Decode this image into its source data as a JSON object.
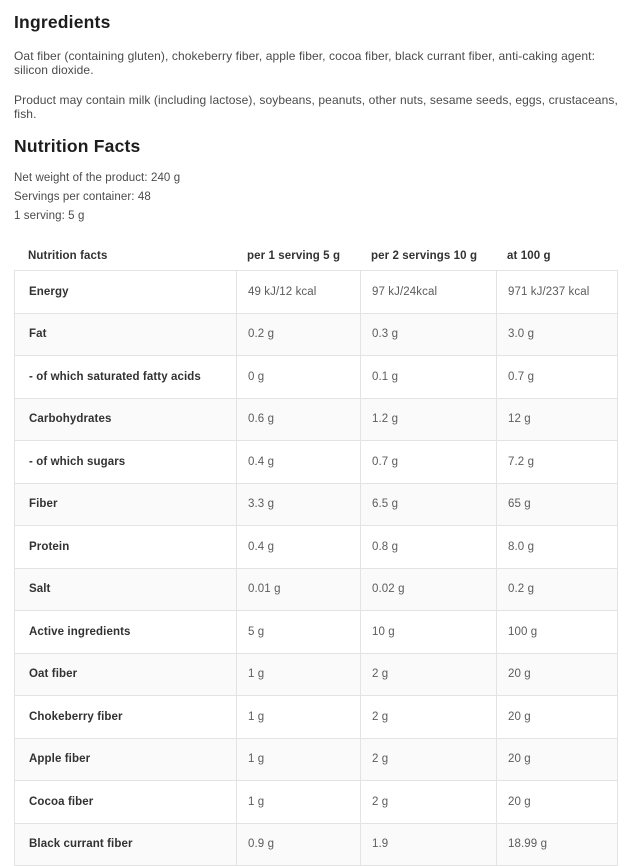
{
  "ingredients": {
    "title": "Ingredients",
    "text": "Oat fiber (containing gluten), chokeberry fiber, apple fiber, cocoa fiber, black currant fiber, anti-caking agent: silicon dioxide.",
    "allergen_text": "Product may contain milk (including lactose), soybeans, peanuts, other nuts, sesame seeds, eggs, crustaceans, fish."
  },
  "nutrition": {
    "title": "Nutrition Facts",
    "net_weight": "Net weight of the product: 240 g",
    "servings_per_container": "Servings per container: 48",
    "serving_size": "1 serving: 5 g"
  },
  "table": {
    "headers": [
      "Nutrition facts",
      "per 1 serving 5 g",
      "per 2 servings 10 g",
      "at 100 g"
    ],
    "rows": [
      {
        "label": "Energy",
        "per_serving": "49 kJ/12 kcal",
        "per_2_servings": "97 kJ/24kcal",
        "at_100g": "971 kJ/237 kcal"
      },
      {
        "label": "Fat",
        "per_serving": "0.2 g",
        "per_2_servings": "0.3 g",
        "at_100g": "3.0 g"
      },
      {
        "label": "- of which saturated fatty acids",
        "per_serving": "0 g",
        "per_2_servings": "0.1 g",
        "at_100g": "0.7 g"
      },
      {
        "label": "Carbohydrates",
        "per_serving": "0.6 g",
        "per_2_servings": "1.2 g",
        "at_100g": "12 g"
      },
      {
        "label": "- of which sugars",
        "per_serving": "0.4 g",
        "per_2_servings": "0.7 g",
        "at_100g": "7.2 g"
      },
      {
        "label": "Fiber",
        "per_serving": "3.3 g",
        "per_2_servings": "6.5 g",
        "at_100g": "65 g"
      },
      {
        "label": "Protein",
        "per_serving": "0.4 g",
        "per_2_servings": "0.8 g",
        "at_100g": "8.0 g"
      },
      {
        "label": "Salt",
        "per_serving": "0.01 g",
        "per_2_servings": "0.02 g",
        "at_100g": "0.2 g"
      },
      {
        "label": "Active ingredients",
        "per_serving": "5 g",
        "per_2_servings": "10 g",
        "at_100g": "100 g"
      },
      {
        "label": "Oat fiber",
        "per_serving": "1 g",
        "per_2_servings": "2 g",
        "at_100g": "20 g"
      },
      {
        "label": "Chokeberry fiber",
        "per_serving": "1 g",
        "per_2_servings": "2 g",
        "at_100g": "20 g"
      },
      {
        "label": "Apple fiber",
        "per_serving": "1 g",
        "per_2_servings": "2 g",
        "at_100g": "20 g"
      },
      {
        "label": "Cocoa fiber",
        "per_serving": "1 g",
        "per_2_servings": "2 g",
        "at_100g": "20 g"
      },
      {
        "label": "Black currant fiber",
        "per_serving": "0.9 g",
        "per_2_servings": "1.9",
        "at_100g": "18.99 g"
      }
    ]
  },
  "colors": {
    "border": "#e3e3e3",
    "alt_row": "#fafafa",
    "text_heading": "#1d1d1d",
    "text_body": "#4a4a4a",
    "text_label": "#323232",
    "text_value": "#5c5c5c"
  }
}
